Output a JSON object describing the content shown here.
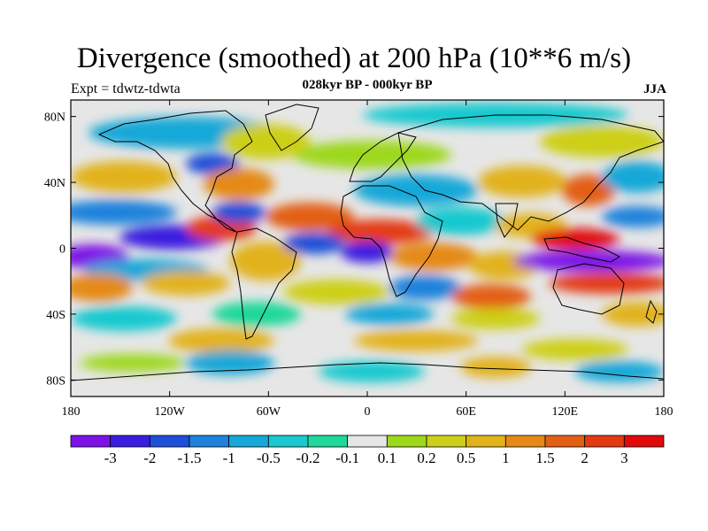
{
  "chart_data": {
    "type": "heatmap",
    "title": "Divergence (smoothed) at 200 hPa (10**6 m/s)",
    "subtitle": "028kyr BP - 000kyr BP",
    "left_label": "Expt = tdwtz-tdwta",
    "right_label": "JJA",
    "x_axis": {
      "range": [
        -180,
        180
      ],
      "ticks": [
        -180,
        -120,
        -60,
        0,
        60,
        120,
        180
      ],
      "tick_labels": [
        "180",
        "120W",
        "60W",
        "0",
        "60E",
        "120E",
        "180"
      ]
    },
    "y_axis": {
      "range": [
        -90,
        90
      ],
      "ticks": [
        80,
        40,
        0,
        -40,
        -80
      ],
      "tick_labels": [
        "80N",
        "40N",
        "0",
        "40S",
        "80S"
      ]
    },
    "colorbar": {
      "levels": [
        "-3",
        "-2",
        "-1.5",
        "-1",
        "-0.5",
        "-0.2",
        "-0.1",
        "0.1",
        "0.2",
        "0.5",
        "1",
        "1.5",
        "2",
        "3"
      ],
      "colors": [
        "#7d12e6",
        "#3a1ee0",
        "#1f4fd8",
        "#1e82dc",
        "#17a8d8",
        "#18c9cf",
        "#1fd89a",
        "#e6e6e6",
        "#9dd81a",
        "#cdcf19",
        "#e2b21a",
        "#e58a18",
        "#e35f14",
        "#e43a13",
        "#e10a0a"
      ]
    },
    "features": [
      {
        "name": "east-pacific-convergence",
        "lon": -130,
        "lat": 6,
        "value": -3
      },
      {
        "name": "west-pacific-convergence",
        "lon": 150,
        "lat": -4,
        "value": -3
      },
      {
        "name": "central-america-divergence",
        "lon": -95,
        "lat": 14,
        "value": 2
      },
      {
        "name": "africa-divergence",
        "lon": 20,
        "lat": 10,
        "value": 2
      },
      {
        "name": "maritime-continent-divergence",
        "lon": 120,
        "lat": 4,
        "value": 3
      },
      {
        "name": "south-pacific-divergence",
        "lon": 160,
        "lat": -18,
        "value": 2
      }
    ]
  }
}
